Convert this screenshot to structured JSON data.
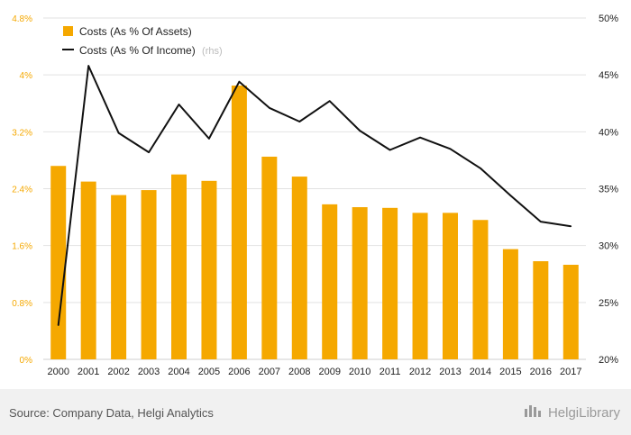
{
  "chart_data": {
    "type": "bar",
    "categories": [
      "2000",
      "2001",
      "2002",
      "2003",
      "2004",
      "2005",
      "2006",
      "2007",
      "2008",
      "2009",
      "2010",
      "2011",
      "2012",
      "2013",
      "2014",
      "2015",
      "2016",
      "2017"
    ],
    "series": [
      {
        "name": "Costs (As % Of Assets)",
        "type": "bar",
        "axis": "left",
        "color": "#f5a800",
        "values": [
          2.72,
          2.5,
          2.31,
          2.38,
          2.6,
          2.51,
          3.85,
          2.85,
          2.57,
          2.18,
          2.14,
          2.13,
          2.06,
          2.06,
          1.96,
          1.55,
          1.38,
          1.33
        ]
      },
      {
        "name": "Costs (As % Of Income)",
        "name_note": "(rhs)",
        "type": "line",
        "axis": "right",
        "color": "#111111",
        "values": [
          23.0,
          45.8,
          39.9,
          38.2,
          42.4,
          39.4,
          44.4,
          42.1,
          40.9,
          42.7,
          40.1,
          38.4,
          39.5,
          38.5,
          36.8,
          34.4,
          32.1,
          31.7
        ]
      }
    ],
    "y_left": {
      "min": 0,
      "max": 4.8,
      "ticks": [
        "0%",
        "0.8%",
        "1.6%",
        "2.4%",
        "3.2%",
        "4%",
        "4.8%"
      ]
    },
    "y_right": {
      "min": 20,
      "max": 50,
      "ticks": [
        "20%",
        "25%",
        "30%",
        "35%",
        "40%",
        "45%",
        "50%"
      ]
    },
    "grid": true,
    "legend": "top-left"
  },
  "footer": {
    "source": "Source: Company Data, Helgi Analytics",
    "brand": "HelgiLibrary"
  }
}
